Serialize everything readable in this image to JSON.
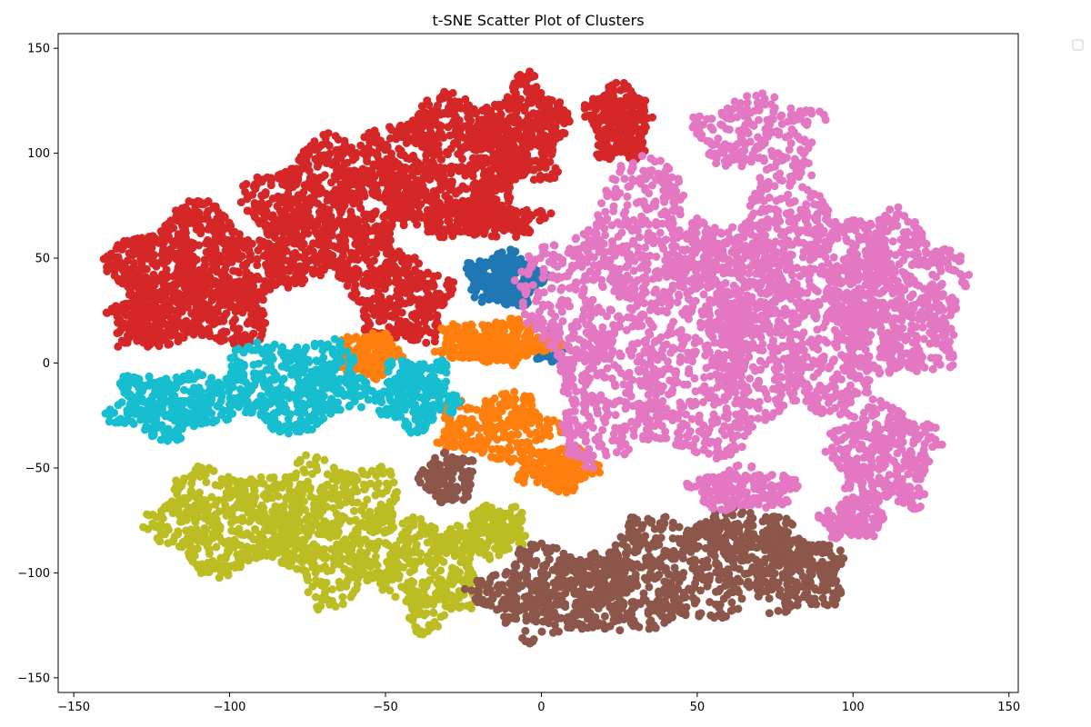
{
  "chart_data": {
    "type": "scatter",
    "title": "t-SNE Scatter Plot of Clusters",
    "xlabel": "",
    "ylabel": "",
    "xlim": [
      -155,
      153
    ],
    "ylim": [
      -157,
      157
    ],
    "xticks": [
      -150,
      -100,
      -50,
      0,
      50,
      100,
      150
    ],
    "yticks": [
      -150,
      -100,
      -50,
      0,
      50,
      100,
      150
    ],
    "xtick_labels": [
      "−150",
      "−100",
      "−50",
      "0",
      "50",
      "100",
      "150"
    ],
    "ytick_labels": [
      "−150",
      "−100",
      "−50",
      "0",
      "50",
      "100",
      "150"
    ],
    "grid": false,
    "legend": {
      "placement": "outside upper-right",
      "entries": []
    },
    "marker_size": 4.5,
    "clusters": [
      {
        "color": "#d62728",
        "regions": [
          {
            "cx": -110,
            "cy": 40,
            "rx": 32,
            "ry": 38,
            "n": 900
          },
          {
            "cx": -68,
            "cy": 70,
            "rx": 30,
            "ry": 40,
            "n": 800
          },
          {
            "cx": -30,
            "cy": 95,
            "rx": 30,
            "ry": 35,
            "n": 700
          },
          {
            "cx": -5,
            "cy": 110,
            "rx": 15,
            "ry": 30,
            "n": 350
          },
          {
            "cx": 25,
            "cy": 115,
            "rx": 12,
            "ry": 22,
            "n": 250
          },
          {
            "cx": -45,
            "cy": 30,
            "rx": 18,
            "ry": 25,
            "n": 300
          },
          {
            "cx": -20,
            "cy": 68,
            "rx": 25,
            "ry": 10,
            "n": 200
          },
          {
            "cx": -130,
            "cy": 20,
            "rx": 10,
            "ry": 15,
            "n": 120
          }
        ]
      },
      {
        "color": "#1f77b4",
        "regions": [
          {
            "cx": -12,
            "cy": 40,
            "rx": 14,
            "ry": 15,
            "n": 280
          },
          {
            "cx": 3,
            "cy": 7,
            "rx": 6,
            "ry": 8,
            "n": 60
          }
        ]
      },
      {
        "color": "#ff7f0e",
        "regions": [
          {
            "cx": -15,
            "cy": 10,
            "rx": 22,
            "ry": 12,
            "n": 320
          },
          {
            "cx": -55,
            "cy": 4,
            "rx": 12,
            "ry": 12,
            "n": 160
          },
          {
            "cx": -15,
            "cy": -30,
            "rx": 22,
            "ry": 18,
            "n": 250
          },
          {
            "cx": 5,
            "cy": -50,
            "rx": 15,
            "ry": 12,
            "n": 200
          }
        ]
      },
      {
        "color": "#17becf",
        "regions": [
          {
            "cx": -120,
            "cy": -20,
            "rx": 22,
            "ry": 18,
            "n": 320
          },
          {
            "cx": -80,
            "cy": -10,
            "rx": 30,
            "ry": 25,
            "n": 450
          },
          {
            "cx": -40,
            "cy": -15,
            "rx": 15,
            "ry": 20,
            "n": 250
          }
        ]
      },
      {
        "color": "#bcbd22",
        "regions": [
          {
            "cx": -100,
            "cy": -75,
            "rx": 30,
            "ry": 28,
            "n": 500
          },
          {
            "cx": -65,
            "cy": -80,
            "rx": 25,
            "ry": 40,
            "n": 500
          },
          {
            "cx": -35,
            "cy": -100,
            "rx": 18,
            "ry": 30,
            "n": 300
          },
          {
            "cx": -15,
            "cy": -80,
            "rx": 12,
            "ry": 15,
            "n": 150
          }
        ]
      },
      {
        "color": "#8c564b",
        "regions": [
          {
            "cx": -30,
            "cy": -55,
            "rx": 10,
            "ry": 15,
            "n": 120
          },
          {
            "cx": 5,
            "cy": -110,
            "rx": 30,
            "ry": 25,
            "n": 450
          },
          {
            "cx": 40,
            "cy": -100,
            "rx": 30,
            "ry": 30,
            "n": 450
          },
          {
            "cx": 80,
            "cy": -100,
            "rx": 20,
            "ry": 22,
            "n": 300
          },
          {
            "cx": 65,
            "cy": -80,
            "rx": 20,
            "ry": 12,
            "n": 150
          }
        ]
      },
      {
        "color": "#e377c2",
        "regions": [
          {
            "cx": 35,
            "cy": 20,
            "rx": 45,
            "ry": 80,
            "n": 1400
          },
          {
            "cx": 80,
            "cy": 30,
            "rx": 35,
            "ry": 70,
            "n": 1100
          },
          {
            "cx": 115,
            "cy": 30,
            "rx": 25,
            "ry": 45,
            "n": 600
          },
          {
            "cx": 110,
            "cy": -45,
            "rx": 20,
            "ry": 30,
            "n": 350
          },
          {
            "cx": 100,
            "cy": -75,
            "rx": 12,
            "ry": 10,
            "n": 120
          },
          {
            "cx": 65,
            "cy": -60,
            "rx": 20,
            "ry": 12,
            "n": 180
          },
          {
            "cx": 70,
            "cy": 110,
            "rx": 25,
            "ry": 20,
            "n": 200
          }
        ]
      }
    ]
  }
}
